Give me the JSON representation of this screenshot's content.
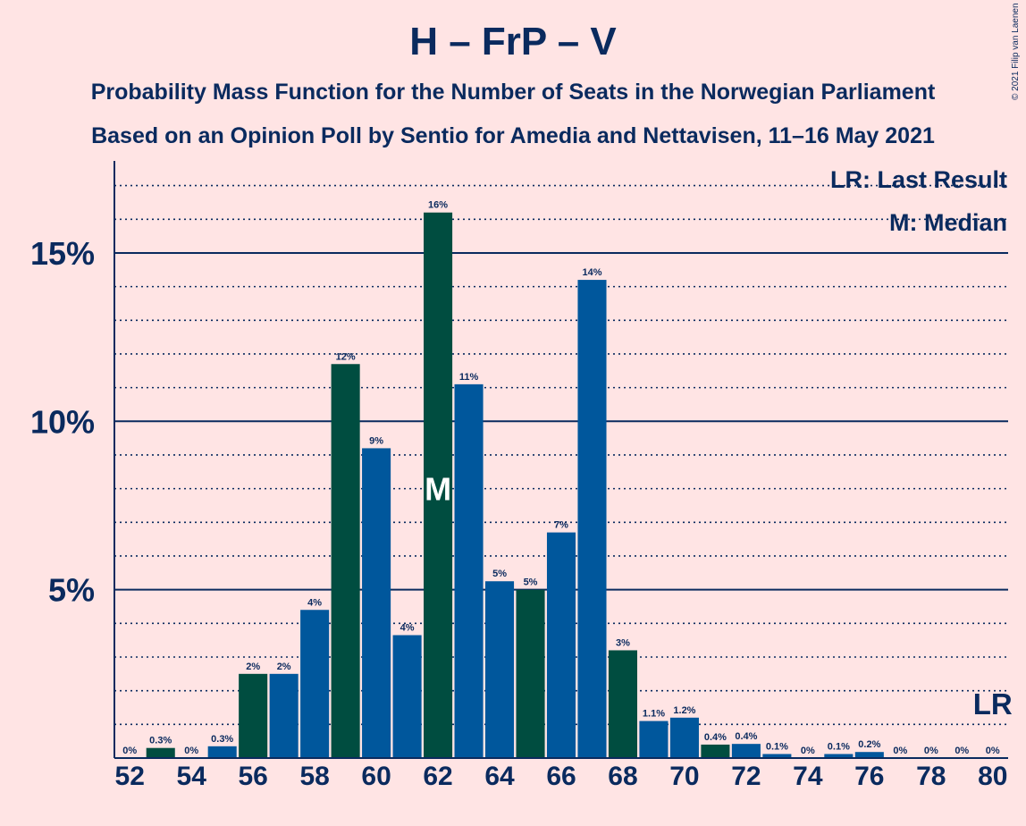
{
  "header": {
    "title": "H – FrP – V",
    "subtitle_1": "Probability Mass Function for the Number of Seats in the Norwegian Parliament",
    "subtitle_2": "Based on an Opinion Poll by Sentio for Amedia and Nettavisen, 11–16 May 2021",
    "copyright": "© 2021 Filip van Laenen"
  },
  "legend": {
    "last_result": "LR: Last Result",
    "median": "M: Median"
  },
  "markers": {
    "median_label": "M",
    "median_seat": 62,
    "last_result_label": "LR",
    "last_result_seat": 80
  },
  "colors": {
    "background": "#ffe4e4",
    "dark_green": "#004d40",
    "blue": "#00579c",
    "navy": "#0a2a5e"
  },
  "chart_data": {
    "type": "bar",
    "x": [
      52,
      53,
      54,
      55,
      56,
      57,
      58,
      59,
      60,
      61,
      62,
      63,
      64,
      65,
      66,
      67,
      68,
      69,
      70,
      71,
      72,
      73,
      74,
      75,
      76,
      77,
      78,
      79,
      80
    ],
    "values": [
      0,
      0.3,
      0,
      0.35,
      2.5,
      2.5,
      4.4,
      11.7,
      9.2,
      3.65,
      16.2,
      11.1,
      5.25,
      5.0,
      6.7,
      14.2,
      3.2,
      1.1,
      1.2,
      0.4,
      0.42,
      0.12,
      0,
      0.12,
      0.18,
      0,
      0,
      0,
      0
    ],
    "data_labels": [
      "0%",
      "0.3%",
      "0%",
      "0.3%",
      "2%",
      "2%",
      "4%",
      "12%",
      "9%",
      "4%",
      "16%",
      "11%",
      "5%",
      "5%",
      "7%",
      "14%",
      "3%",
      "1.1%",
      "1.2%",
      "0.4%",
      "0.4%",
      "0.1%",
      "0%",
      "0.1%",
      "0.2%",
      "0%",
      "0%",
      "0%",
      "0%"
    ],
    "bar_colors": [
      "blue",
      "dark_green",
      "blue",
      "blue",
      "dark_green",
      "blue",
      "blue",
      "dark_green",
      "blue",
      "blue",
      "dark_green",
      "blue",
      "blue",
      "dark_green",
      "blue",
      "blue",
      "dark_green",
      "blue",
      "blue",
      "dark_green",
      "blue",
      "blue",
      "dark_green",
      "blue",
      "blue",
      "dark_green",
      "blue",
      "blue",
      "dark_green"
    ],
    "x_tick_labels": [
      "52",
      "54",
      "56",
      "58",
      "60",
      "62",
      "64",
      "66",
      "68",
      "70",
      "72",
      "74",
      "76",
      "78",
      "80"
    ],
    "y_tick_labels": [
      "5%",
      "10%",
      "15%"
    ],
    "y_ticks": [
      5,
      10,
      15
    ],
    "ylim": [
      0,
      17.6
    ],
    "xlim": [
      51.5,
      80.5
    ],
    "grid": "dotted every 1%, solid every 5%"
  }
}
